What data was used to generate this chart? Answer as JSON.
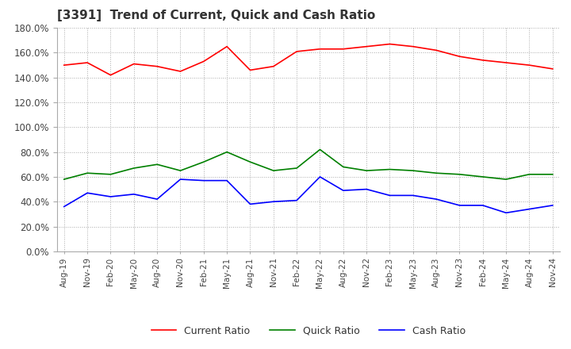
{
  "title": "[3391]  Trend of Current, Quick and Cash Ratio",
  "x_labels": [
    "Aug-19",
    "Nov-19",
    "Feb-20",
    "May-20",
    "Aug-20",
    "Nov-20",
    "Feb-21",
    "May-21",
    "Aug-21",
    "Nov-21",
    "Feb-22",
    "May-22",
    "Aug-22",
    "Nov-22",
    "Feb-23",
    "May-23",
    "Aug-23",
    "Nov-23",
    "Feb-24",
    "May-24",
    "Aug-24",
    "Nov-24"
  ],
  "current_ratio": [
    1.5,
    1.52,
    1.42,
    1.51,
    1.49,
    1.45,
    1.53,
    1.65,
    1.46,
    1.49,
    1.61,
    1.63,
    1.63,
    1.65,
    1.67,
    1.65,
    1.62,
    1.57,
    1.54,
    1.52,
    1.5,
    1.47
  ],
  "quick_ratio": [
    0.58,
    0.63,
    0.62,
    0.67,
    0.7,
    0.65,
    0.72,
    0.8,
    0.72,
    0.65,
    0.67,
    0.82,
    0.68,
    0.65,
    0.66,
    0.65,
    0.63,
    0.62,
    0.6,
    0.58,
    0.62,
    0.62
  ],
  "cash_ratio": [
    0.36,
    0.47,
    0.44,
    0.46,
    0.42,
    0.58,
    0.57,
    0.57,
    0.38,
    0.4,
    0.41,
    0.6,
    0.49,
    0.5,
    0.45,
    0.45,
    0.42,
    0.37,
    0.37,
    0.31,
    0.34,
    0.37
  ],
  "current_color": "#FF0000",
  "quick_color": "#008000",
  "cash_color": "#0000FF",
  "background_color": "#ffffff",
  "grid_color": "#aaaaaa"
}
